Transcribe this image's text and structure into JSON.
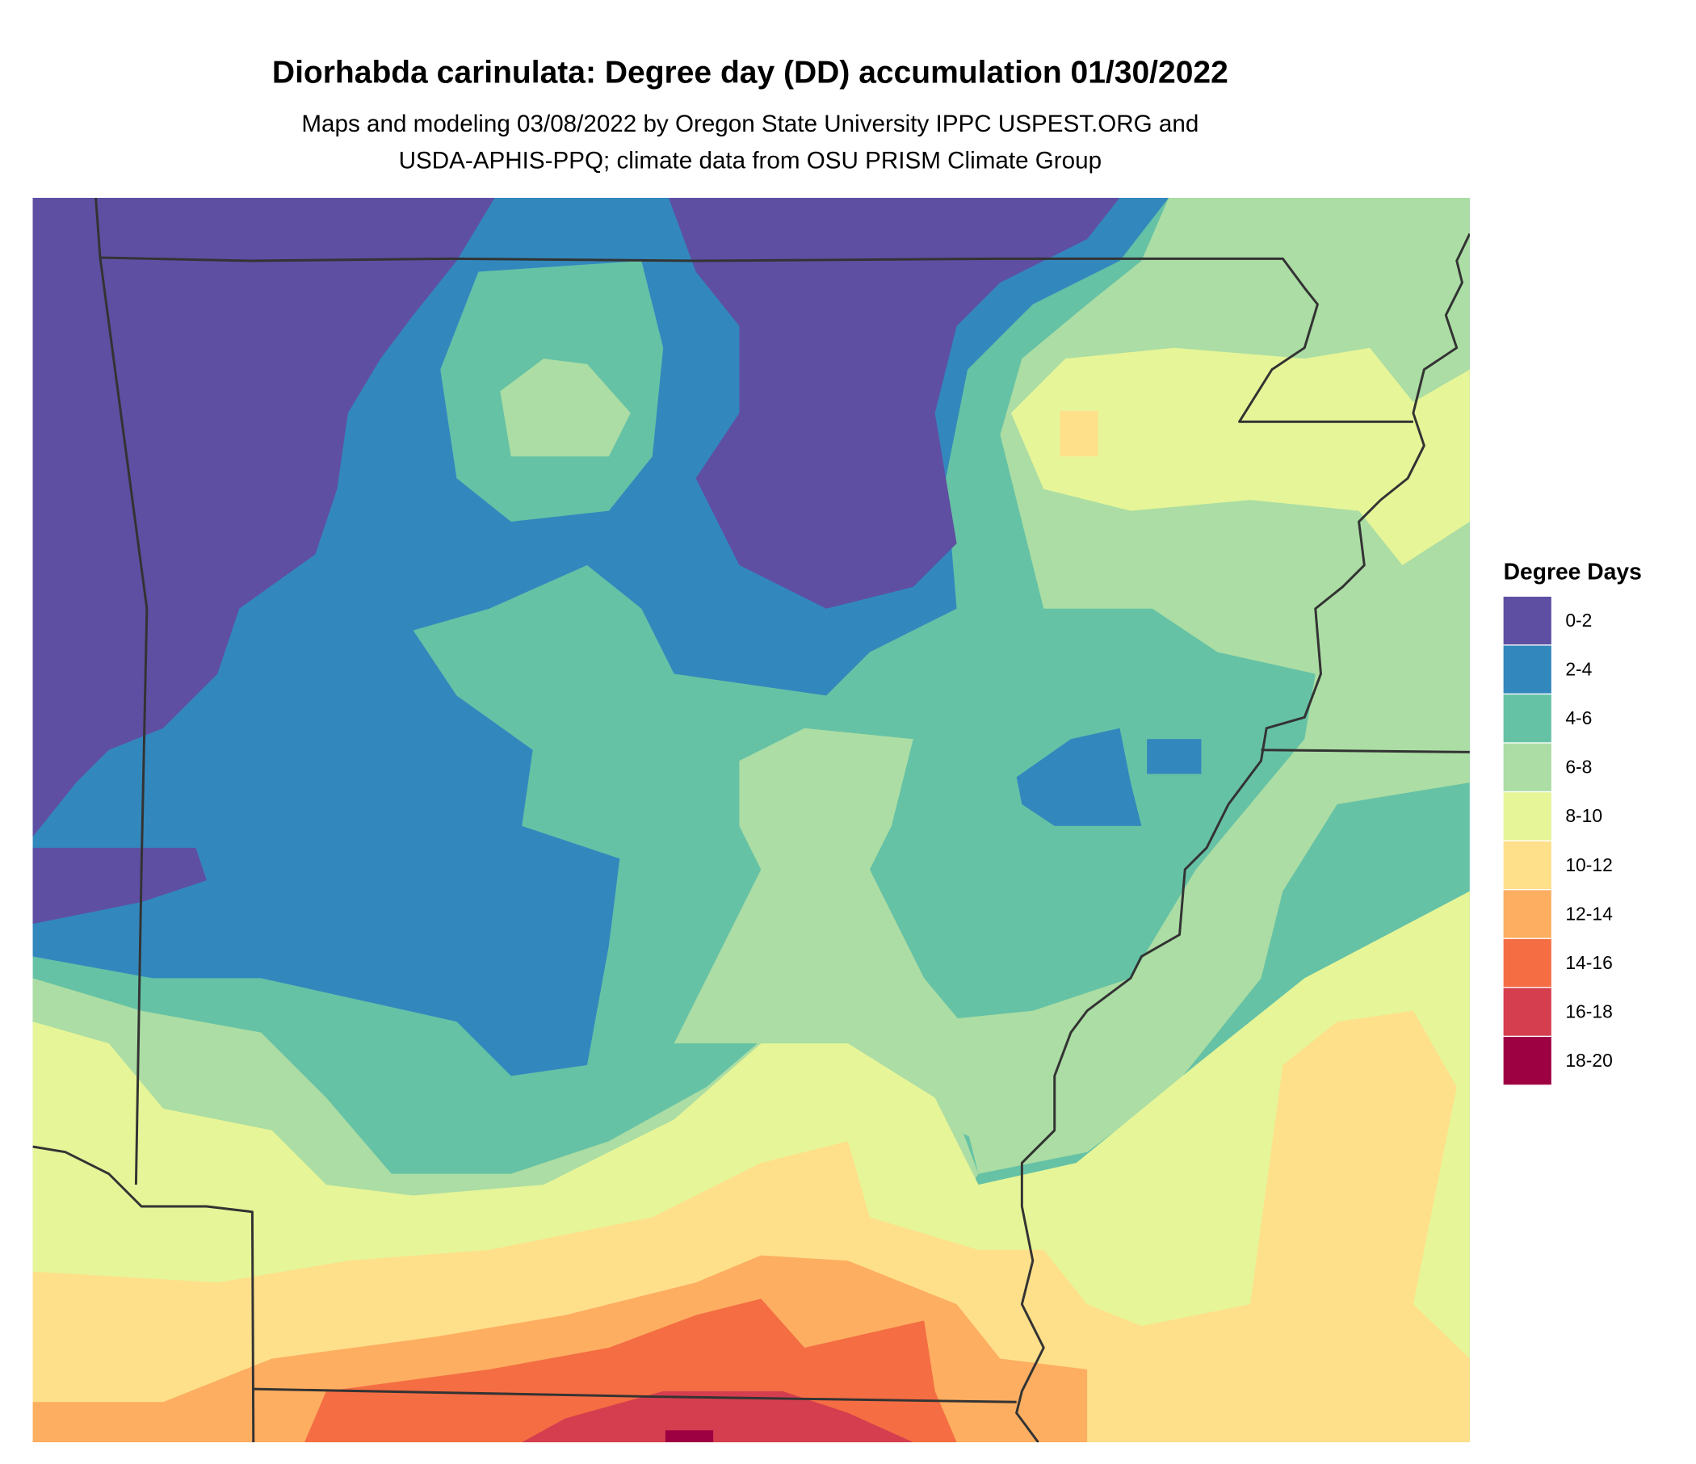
{
  "title": "Diorhabda carinulata: Degree day (DD) accumulation 01/30/2022",
  "subtitle": [
    "Maps and modeling 03/08/2022 by Oregon State University IPPC USPEST.ORG and",
    "USDA-APHIS-PPQ; climate data from OSU PRISM Climate Group"
  ],
  "legend": {
    "title": "Degree Days",
    "items": [
      {
        "label": "0-2",
        "color": "#5E4FA2"
      },
      {
        "label": "2-4",
        "color": "#3288BD"
      },
      {
        "label": "4-6",
        "color": "#66C2A5"
      },
      {
        "label": "6-8",
        "color": "#ABDDA4"
      },
      {
        "label": "8-10",
        "color": "#E6F598"
      },
      {
        "label": "10-12",
        "color": "#FEE08B"
      },
      {
        "label": "12-14",
        "color": "#FDAE61"
      },
      {
        "label": "14-16",
        "color": "#F46D43"
      },
      {
        "label": "16-18",
        "color": "#D53E4F"
      },
      {
        "label": "18-20",
        "color": "#9E0142"
      }
    ]
  }
}
